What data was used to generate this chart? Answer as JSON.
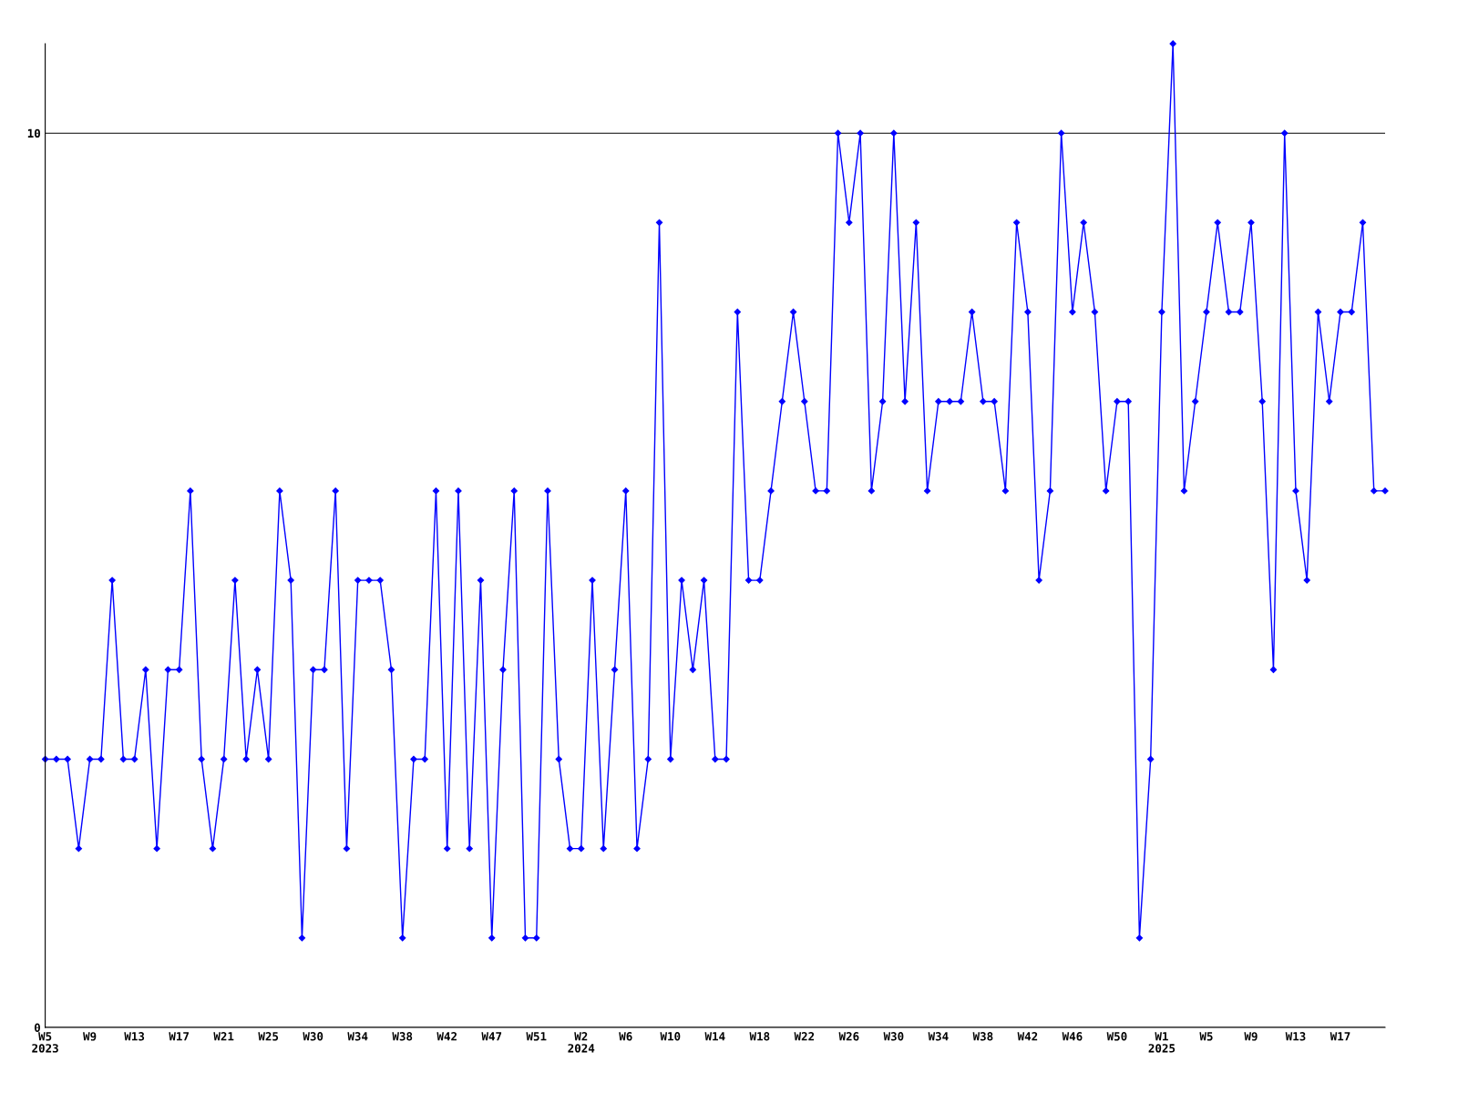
{
  "chart_data": {
    "type": "line",
    "categories": [
      "W5\n2023",
      null,
      null,
      null,
      "W9",
      null,
      null,
      null,
      "W13",
      null,
      null,
      null,
      "W17",
      null,
      null,
      null,
      "W21",
      null,
      null,
      null,
      "W25",
      null,
      null,
      null,
      "W30",
      null,
      null,
      null,
      "W34",
      null,
      null,
      null,
      "W38",
      null,
      null,
      null,
      "W42",
      null,
      null,
      null,
      "W47",
      null,
      null,
      null,
      "W51",
      null,
      null,
      null,
      "W2\n2024",
      null,
      null,
      null,
      "W6",
      null,
      null,
      null,
      "W10",
      null,
      null,
      null,
      "W14",
      null,
      null,
      null,
      "W18",
      null,
      null,
      null,
      "W22",
      null,
      null,
      null,
      "W26",
      null,
      null,
      null,
      "W30",
      null,
      null,
      null,
      "W34",
      null,
      null,
      null,
      "W38",
      null,
      null,
      null,
      "W42",
      null,
      null,
      null,
      "W46",
      null,
      null,
      null,
      "W50",
      null,
      null,
      null,
      "W1\n2025",
      null,
      null,
      null,
      "W5",
      null,
      null,
      null,
      "W9",
      null,
      null,
      null,
      "W13",
      null,
      null,
      null,
      "W17",
      null,
      null,
      null,
      null
    ],
    "series": [
      {
        "color": "#0000ff",
        "values": [
          3,
          3,
          3,
          2,
          3,
          3,
          5,
          3,
          3,
          4,
          2,
          4,
          4,
          6,
          3,
          2,
          3,
          5,
          3,
          4,
          3,
          6,
          5,
          1,
          4,
          4,
          6,
          2,
          5,
          5,
          5,
          4,
          1,
          3,
          3,
          6,
          2,
          6,
          2,
          5,
          1,
          4,
          6,
          1,
          1,
          6,
          3,
          2,
          2,
          5,
          2,
          4,
          6,
          2,
          3,
          9,
          3,
          5,
          4,
          5,
          3,
          3,
          8,
          5,
          5,
          6,
          7,
          8,
          7,
          6,
          6,
          10,
          9,
          10,
          6,
          7,
          10,
          7,
          9,
          6,
          7,
          7,
          7,
          8,
          7,
          7,
          6,
          9,
          8,
          5,
          6,
          10,
          8,
          9,
          8,
          6,
          7,
          7,
          1,
          3,
          8,
          11,
          6,
          7,
          8,
          9,
          8,
          8,
          9,
          7,
          4,
          10,
          6,
          5,
          8,
          7,
          8,
          8,
          9,
          6,
          6
        ]
      }
    ],
    "ylim": [
      0,
      11
    ],
    "yticks": [
      0,
      10
    ],
    "grid": "y",
    "marker": "diamond",
    "line_style": "solid",
    "legend": false
  }
}
